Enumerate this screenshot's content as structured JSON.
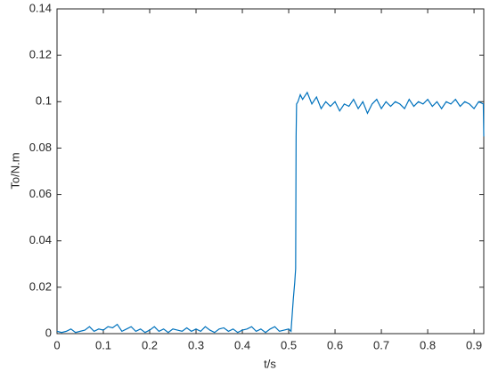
{
  "chart_data": {
    "type": "line",
    "x_label": "t/s",
    "y_label": "To/N.m",
    "color": "#0072bd",
    "x": [
      0,
      0.01,
      0.02,
      0.03,
      0.04,
      0.05,
      0.06,
      0.07,
      0.08,
      0.09,
      0.1,
      0.11,
      0.12,
      0.13,
      0.14,
      0.15,
      0.16,
      0.17,
      0.18,
      0.19,
      0.2,
      0.21,
      0.22,
      0.23,
      0.24,
      0.25,
      0.26,
      0.27,
      0.28,
      0.29,
      0.3,
      0.31,
      0.32,
      0.33,
      0.34,
      0.35,
      0.36,
      0.37,
      0.38,
      0.39,
      0.4,
      0.41,
      0.42,
      0.43,
      0.44,
      0.45,
      0.46,
      0.47,
      0.48,
      0.49,
      0.5,
      0.505,
      0.51,
      0.513,
      0.515,
      0.516,
      0.517,
      0.52,
      0.525,
      0.53,
      0.54,
      0.55,
      0.56,
      0.57,
      0.58,
      0.59,
      0.6,
      0.61,
      0.62,
      0.63,
      0.64,
      0.65,
      0.66,
      0.67,
      0.68,
      0.69,
      0.7,
      0.71,
      0.72,
      0.73,
      0.74,
      0.75,
      0.76,
      0.77,
      0.78,
      0.79,
      0.8,
      0.81,
      0.82,
      0.83,
      0.84,
      0.85,
      0.86,
      0.87,
      0.88,
      0.89,
      0.9,
      0.91,
      0.92,
      0.921
    ],
    "values": [
      0.001,
      0.0005,
      0.001,
      0.002,
      0.0005,
      0.001,
      0.0015,
      0.003,
      0.001,
      0.002,
      0.0015,
      0.003,
      0.0025,
      0.004,
      0.001,
      0.002,
      0.003,
      0.001,
      0.002,
      0.0005,
      0.0015,
      0.003,
      0.001,
      0.002,
      0.0005,
      0.002,
      0.0015,
      0.001,
      0.0025,
      0.001,
      0.002,
      0.001,
      0.003,
      0.0015,
      0.0005,
      0.002,
      0.0025,
      0.001,
      0.002,
      0.0005,
      0.0015,
      0.002,
      0.003,
      0.001,
      0.002,
      0.0005,
      0.002,
      0.003,
      0.001,
      0.0015,
      0.002,
      0.001,
      0.015,
      0.022,
      0.028,
      0.085,
      0.099,
      0.1,
      0.103,
      0.101,
      0.104,
      0.099,
      0.102,
      0.097,
      0.1,
      0.098,
      0.1,
      0.096,
      0.099,
      0.098,
      0.101,
      0.097,
      0.1,
      0.095,
      0.099,
      0.101,
      0.097,
      0.1,
      0.098,
      0.1,
      0.099,
      0.097,
      0.101,
      0.098,
      0.1,
      0.099,
      0.101,
      0.098,
      0.1,
      0.097,
      0.1,
      0.099,
      0.101,
      0.098,
      0.1,
      0.099,
      0.097,
      0.1,
      0.099,
      0.085
    ],
    "xlim": [
      0,
      0.921
    ],
    "xticks": [
      0,
      0.1,
      0.2,
      0.3,
      0.4,
      0.5,
      0.6,
      0.7,
      0.8,
      0.9
    ],
    "ylim": [
      0,
      0.14
    ],
    "yticks": [
      0,
      0.02,
      0.04,
      0.06,
      0.08,
      0.1,
      0.12,
      0.14
    ]
  }
}
